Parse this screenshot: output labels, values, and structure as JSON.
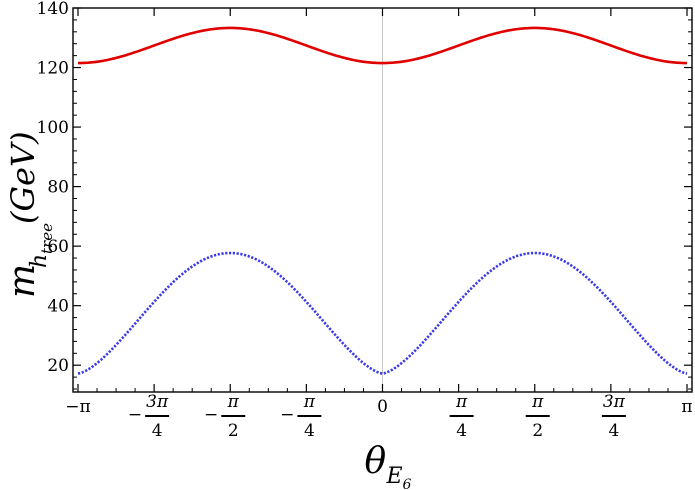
{
  "chart_data": {
    "type": "line",
    "title": "",
    "xlabel": {
      "base": "θ",
      "sub": "E",
      "subsub": "6"
    },
    "ylabel": {
      "base": "m",
      "sub": "h",
      "subsub": "tree",
      "unit": "(GeV)"
    },
    "xlim": [
      -3.14159,
      3.14159
    ],
    "ylim": [
      11,
      140
    ],
    "grid": false,
    "vertical_reference_line_at": 0,
    "y_ticks": [
      20,
      40,
      60,
      80,
      100,
      120,
      140
    ],
    "x_ticks": [
      {
        "value": -3.14159,
        "label": "−π"
      },
      {
        "value": -2.35619,
        "num": "3π",
        "den": "4",
        "sign": "−"
      },
      {
        "value": -1.5708,
        "num": "π",
        "den": "2",
        "sign": "−"
      },
      {
        "value": -0.7854,
        "num": "π",
        "den": "4",
        "sign": "−"
      },
      {
        "value": 0,
        "label": "0"
      },
      {
        "value": 0.7854,
        "num": "π",
        "den": "4",
        "sign": ""
      },
      {
        "value": 1.5708,
        "num": "π",
        "den": "2",
        "sign": ""
      },
      {
        "value": 2.35619,
        "num": "3π",
        "den": "4",
        "sign": ""
      },
      {
        "value": 3.14159,
        "label": "π"
      }
    ],
    "series": [
      {
        "color": "#e00000",
        "style": "solid",
        "x": [
          -3.14159,
          -2.74889,
          -2.35619,
          -1.9635,
          -1.5708,
          -1.1781,
          -0.7854,
          -0.3927,
          0,
          0.3927,
          0.7854,
          1.1781,
          1.5708,
          1.9635,
          2.35619,
          2.74889,
          3.14159
        ],
        "values": [
          121.5,
          123.2,
          127.4,
          131.6,
          133.3,
          131.6,
          127.4,
          123.2,
          121.5,
          123.2,
          127.4,
          131.6,
          133.3,
          131.6,
          127.4,
          123.2,
          121.5
        ]
      },
      {
        "color": "#3a3ae8",
        "style": "dotted",
        "x": [
          -3.14159,
          -2.74889,
          -2.35619,
          -1.9635,
          -1.5708,
          -1.1781,
          -0.7854,
          -0.3927,
          0,
          0.3927,
          0.7854,
          1.1781,
          1.5708,
          1.9635,
          2.35619,
          2.74889,
          3.14159
        ],
        "values": [
          17.2,
          27.5,
          44.0,
          54.5,
          57.7,
          54.5,
          44.0,
          27.5,
          17.2,
          27.5,
          44.0,
          54.5,
          57.7,
          54.5,
          44.0,
          27.5,
          17.2
        ]
      }
    ]
  }
}
